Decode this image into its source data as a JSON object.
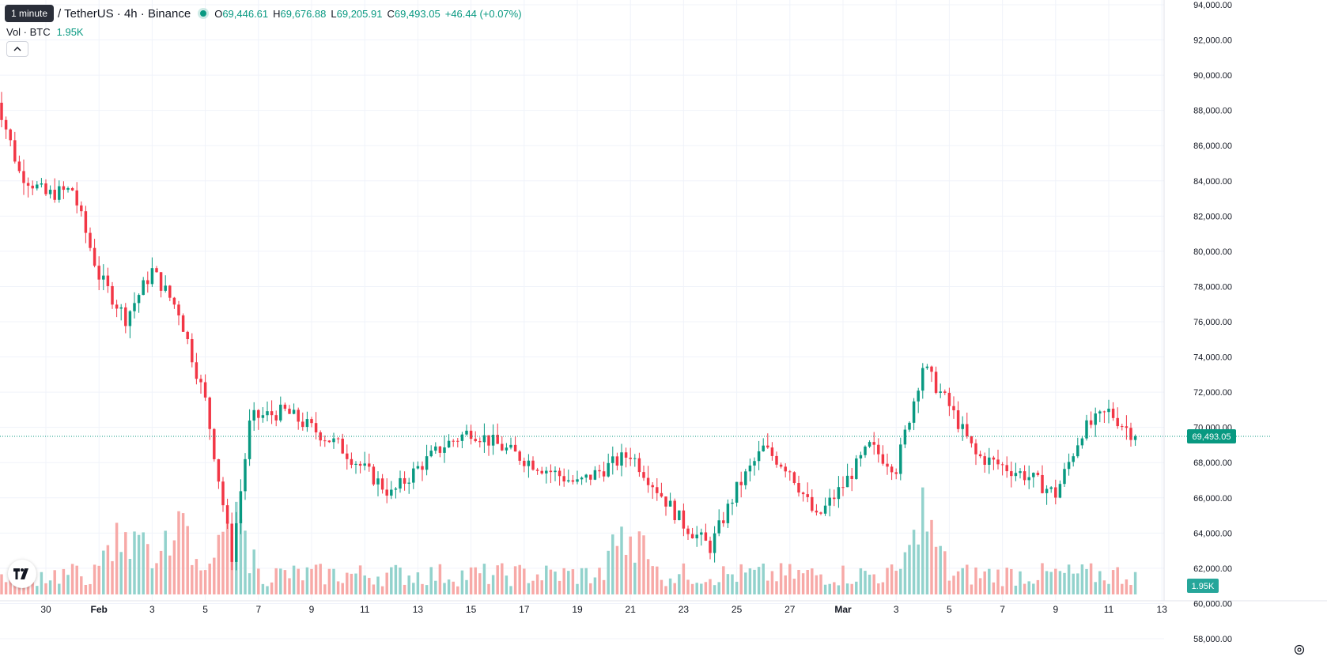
{
  "legend": {
    "tooltip": "1 minute",
    "symbol": "/ TetherUS · 4h · Binance",
    "open_label": "O",
    "open": "69,446.61",
    "high_label": "H",
    "high": "69,676.88",
    "low_label": "L",
    "low": "69,205.91",
    "close_label": "C",
    "close": "69,493.05",
    "change": "+46.44 (+0.07%)",
    "vol_label": "Vol · BTC",
    "vol_value": "1.95K"
  },
  "colors": {
    "up": "#089981",
    "down": "#f23645",
    "vol_up": "#92d2cc",
    "vol_down": "#f7a9a7",
    "grid": "#f0f3fa"
  },
  "price_axis": {
    "labels": [
      "94,000.00",
      "92,000.00",
      "90,000.00",
      "88,000.00",
      "86,000.00",
      "84,000.00",
      "82,000.00",
      "80,000.00",
      "78,000.00",
      "76,000.00",
      "74,000.00",
      "72,000.00",
      "70,000.00",
      "68,000.00",
      "66,000.00",
      "64,000.00",
      "62,000.00",
      "60,000.00",
      "58,000.00"
    ],
    "last_price_label": "69,493.05",
    "volume_label": "1.95K"
  },
  "time_axis": {
    "labels": [
      "30",
      "Feb",
      "3",
      "5",
      "7",
      "9",
      "11",
      "13",
      "15",
      "17",
      "19",
      "21",
      "23",
      "25",
      "27",
      "Mar",
      "3",
      "5",
      "7",
      "9",
      "11",
      "13"
    ]
  },
  "chart_data": {
    "type": "candlestick",
    "symbol": "/ TetherUS",
    "interval": "4h",
    "exchange": "Binance",
    "y_range": [
      57500,
      94000
    ],
    "last_price": 69493.05,
    "keypoints_close": [
      [
        "Jan 28",
        89500
      ],
      [
        "Jan 29",
        84500
      ],
      [
        "Jan 30",
        83200
      ],
      [
        "Jan 31",
        83500
      ],
      [
        "Feb 1",
        78600
      ],
      [
        "Feb 2",
        76200
      ],
      [
        "Feb 3",
        78900
      ],
      [
        "Feb 4",
        76600
      ],
      [
        "Feb 5",
        71500
      ],
      [
        "Feb 6",
        62700
      ],
      [
        "Feb 6 late",
        70500
      ],
      [
        "Feb 8",
        70900
      ],
      [
        "Feb 10",
        69000
      ],
      [
        "Feb 12",
        66200
      ],
      [
        "Feb 13",
        67700
      ],
      [
        "Feb 14",
        69000
      ],
      [
        "Feb 15",
        69800
      ],
      [
        "Feb 17",
        68200
      ],
      [
        "Feb 19",
        66800
      ],
      [
        "Feb 21",
        68500
      ],
      [
        "Feb 23",
        64500
      ],
      [
        "Feb 24",
        63200
      ],
      [
        "Feb 25",
        66500
      ],
      [
        "Feb 26",
        68800
      ],
      [
        "Feb 27",
        67600
      ],
      [
        "Feb 28",
        64800
      ],
      [
        "Mar 1",
        66700
      ],
      [
        "Mar 2",
        68900
      ],
      [
        "Mar 3",
        67700
      ],
      [
        "Mar 4",
        73500
      ],
      [
        "Mar 5",
        71200
      ],
      [
        "Mar 6",
        68400
      ],
      [
        "Mar 8",
        67200
      ],
      [
        "Mar 9",
        66200
      ],
      [
        "Mar 10",
        69800
      ],
      [
        "Mar 11",
        70900
      ],
      [
        "Mar 12",
        69493
      ]
    ],
    "volume_peak_dates": [
      "Feb 2",
      "Feb 4",
      "Feb 6",
      "Feb 21",
      "Mar 4"
    ]
  }
}
